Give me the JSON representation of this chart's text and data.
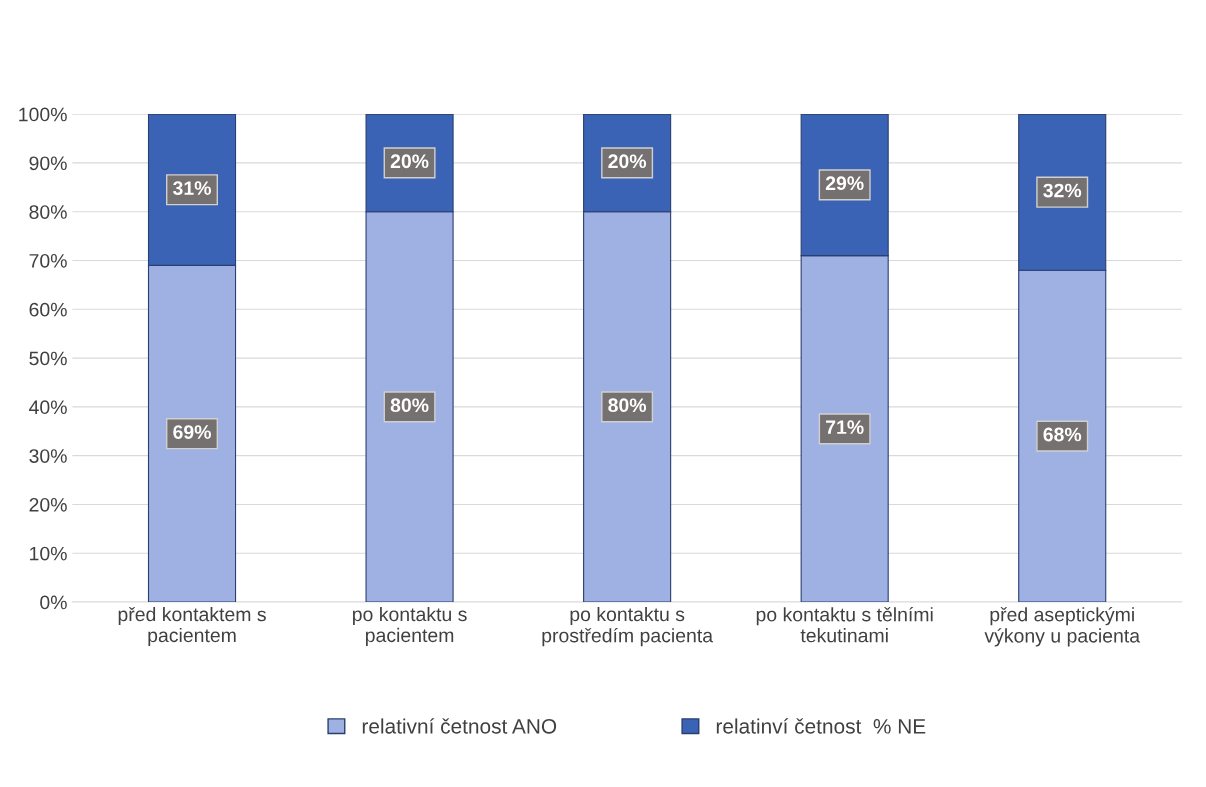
{
  "chart_data": {
    "type": "bar",
    "stacked": true,
    "categories": [
      "před kontaktem s\npacientem",
      "po kontaktu s\npacientem",
      "po kontaktu s\nprostředím pacienta",
      "po kontaktu s tělními\ntekutinami",
      "před aseptickými\nvýkony u pacienta"
    ],
    "series": [
      {
        "name": "relativní četnost ANO",
        "color": "#9fb0e2",
        "values": [
          69,
          80,
          80,
          71,
          68
        ],
        "value_labels": [
          "69%",
          "80%",
          "80%",
          "71%",
          "68%"
        ]
      },
      {
        "name": "relatinví četnost  % NE",
        "color": "#3b63b5",
        "values": [
          31,
          20,
          20,
          29,
          32
        ],
        "value_labels": [
          "31%",
          "20%",
          "20%",
          "29%",
          "32%"
        ]
      }
    ],
    "ylim": [
      0,
      100
    ],
    "yticks": [
      {
        "value": 0,
        "label": "0%"
      },
      {
        "value": 10,
        "label": "10%"
      },
      {
        "value": 20,
        "label": "20%"
      },
      {
        "value": 30,
        "label": "30%"
      },
      {
        "value": 40,
        "label": "40%"
      },
      {
        "value": 50,
        "label": "50%"
      },
      {
        "value": 60,
        "label": "60%"
      },
      {
        "value": 70,
        "label": "70%"
      },
      {
        "value": 80,
        "label": "80%"
      },
      {
        "value": 90,
        "label": "90%"
      },
      {
        "value": 100,
        "label": "100%"
      }
    ],
    "grid": "y",
    "legend": "bottom"
  }
}
